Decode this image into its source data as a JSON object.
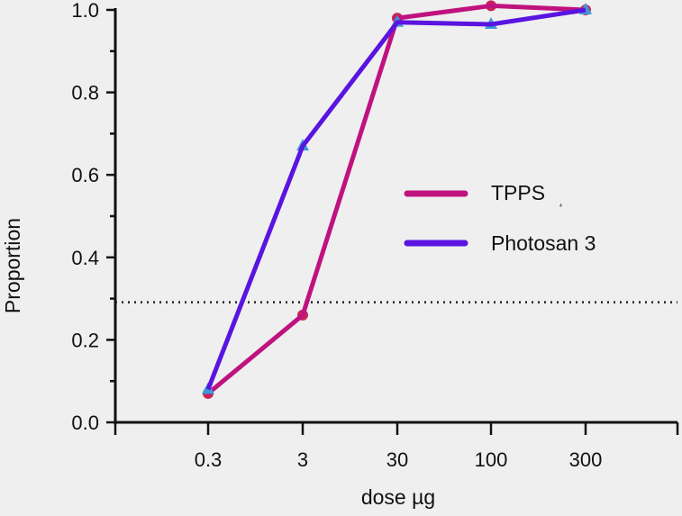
{
  "chart_data": {
    "type": "line",
    "title": "",
    "xlabel": "dose µg",
    "ylabel": "Proportion",
    "categories": [
      "0.3",
      "3",
      "30",
      "100",
      "300"
    ],
    "ylim": [
      0,
      1.0
    ],
    "yticks": [
      "0.0",
      "0.2",
      "0.4",
      "0.6",
      "0.8",
      "1.0"
    ],
    "grid": false,
    "legend_position": "center-right",
    "reference_line": {
      "y": 0.3,
      "style": "dotted"
    },
    "series": [
      {
        "name": "TPPS",
        "subscript": "4",
        "color": "#c0127f",
        "marker": "circle",
        "marker_color": "#c8245a",
        "values": [
          0.07,
          0.26,
          0.98,
          1.01,
          1.0
        ]
      },
      {
        "name": "Photosan 3",
        "color": "#5a14e0",
        "marker": "triangle",
        "marker_color": "#3a9ad8",
        "values": [
          0.08,
          0.67,
          0.97,
          0.965,
          1.0
        ]
      }
    ]
  }
}
